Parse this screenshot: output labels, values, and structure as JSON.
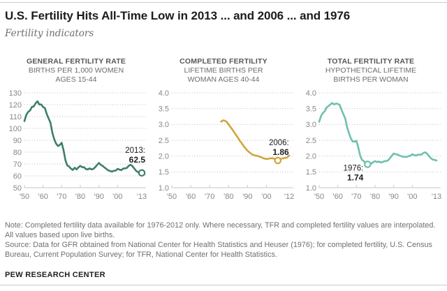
{
  "header": {
    "title": "U.S. Fertility Hits All-Time Low in 2013 ... and 2006 ... and 1976",
    "subtitle": "Fertility indicators"
  },
  "chart_data": [
    {
      "type": "line",
      "header": [
        "GENERAL FERTILITY RATE",
        "BIRTHS PER 1,000 WOMEN",
        "AGES 15-44"
      ],
      "color": "#3d7e6b",
      "x_start": 1950,
      "x_end": 2013,
      "data_x_start": 1950,
      "ylim": [
        50,
        130
      ],
      "yticks": [
        50,
        60,
        70,
        80,
        90,
        100,
        110,
        120,
        130
      ],
      "ytick_labels": [
        "50",
        "60",
        "70",
        "80",
        "90",
        "100",
        "110",
        "120",
        "130"
      ],
      "xticks": [
        1950,
        1960,
        1970,
        1980,
        1990,
        2000
      ],
      "xtick_labels": [
        "'50",
        "'60",
        "'70",
        "'80",
        "'90",
        "'00"
      ],
      "x_end_label": "'13",
      "grid": "dotted",
      "legend": "none",
      "values": [
        106.2,
        111.5,
        113.9,
        115.2,
        118.1,
        118.5,
        121.2,
        122.9,
        120.2,
        120.2,
        118.0,
        117.1,
        112.0,
        108.3,
        104.7,
        96.3,
        90.8,
        87.2,
        85.2,
        86.1,
        87.9,
        81.6,
        73.1,
        68.8,
        67.8,
        66.0,
        65.0,
        66.8,
        65.5,
        67.2,
        68.4,
        67.3,
        67.3,
        65.7,
        65.5,
        66.3,
        65.4,
        65.8,
        67.3,
        69.2,
        70.9,
        69.3,
        68.4,
        67.0,
        65.9,
        64.6,
        64.1,
        63.6,
        64.3,
        64.4,
        65.9,
        65.3,
        64.8,
        66.1,
        66.3,
        66.7,
        68.5,
        69.3,
        68.1,
        66.2,
        64.1,
        63.2,
        63.0,
        62.5
      ],
      "marker": {
        "year": 2013,
        "value": 62.5
      },
      "annotation": {
        "label": "2013:",
        "value": "62.5",
        "dx": 5,
        "dy1": -29,
        "dy2": -15,
        "anchor": "end"
      }
    },
    {
      "type": "line",
      "header": [
        "COMPLETED FERTILITY",
        "LIFETIME BIRTHS PER",
        "WOMAN AGES 40-44"
      ],
      "color": "#d0a63c",
      "x_start": 1950,
      "x_end": 2012,
      "data_x_start": 1976,
      "ylim": [
        1.0,
        4.0
      ],
      "yticks": [
        1.0,
        1.5,
        2.0,
        2.5,
        3.0,
        3.5,
        4.0
      ],
      "ytick_labels": [
        "1.0",
        "1.5",
        "2.0",
        "2.5",
        "3.0",
        "3.5",
        "4.0"
      ],
      "xticks": [
        1950,
        1960,
        1970,
        1980,
        1990,
        2000
      ],
      "xtick_labels": [
        "'50",
        "'60",
        "'70",
        "'80",
        "'90",
        "'00"
      ],
      "x_end_label": "'12",
      "grid": "dotted",
      "legend": "none",
      "values": [
        3.09,
        3.13,
        3.12,
        3.08,
        3.0,
        2.92,
        2.84,
        2.75,
        2.66,
        2.58,
        2.48,
        2.4,
        2.31,
        2.24,
        2.17,
        2.12,
        2.07,
        2.04,
        2.02,
        2.01,
        1.99,
        1.97,
        1.94,
        1.92,
        1.91,
        1.91,
        1.93,
        1.93,
        1.92,
        1.9,
        1.86,
        1.9,
        1.92,
        1.93,
        1.94,
        1.96,
        2.02
      ],
      "marker": {
        "year": 2006,
        "value": 1.86
      },
      "annotation": {
        "label": "2006:",
        "value": "1.86",
        "dx": 16,
        "dy1": -22,
        "dy2": -8,
        "anchor": "end"
      }
    },
    {
      "type": "line",
      "header": [
        "TOTAL FERTILITY RATE",
        "HYPOTHETICAL LIFETIME",
        "BIRTHS PER WOMAN"
      ],
      "color": "#6fc0ae",
      "x_start": 1950,
      "x_end": 2013,
      "data_x_start": 1950,
      "ylim": [
        1.0,
        4.0
      ],
      "yticks": [
        1.0,
        1.5,
        2.0,
        2.5,
        3.0,
        3.5,
        4.0
      ],
      "ytick_labels": [
        "1.0",
        "1.5",
        "2.0",
        "2.5",
        "3.0",
        "3.5",
        "4.0"
      ],
      "xticks": [
        1950,
        1960,
        1970,
        1980,
        1990,
        2000
      ],
      "xtick_labels": [
        "'50",
        "'60",
        "'70",
        "'80",
        "'90",
        "'00"
      ],
      "x_end_label": "'13",
      "grid": "dotted",
      "legend": "none",
      "values": [
        3.09,
        3.27,
        3.36,
        3.42,
        3.54,
        3.58,
        3.63,
        3.68,
        3.63,
        3.66,
        3.65,
        3.62,
        3.46,
        3.32,
        3.19,
        2.91,
        2.72,
        2.56,
        2.46,
        2.46,
        2.48,
        2.27,
        2.01,
        1.88,
        1.84,
        1.77,
        1.74,
        1.79,
        1.76,
        1.81,
        1.84,
        1.81,
        1.83,
        1.8,
        1.81,
        1.84,
        1.84,
        1.87,
        1.93,
        2.01,
        2.08,
        2.06,
        2.05,
        2.02,
        2.0,
        1.98,
        1.98,
        1.97,
        2.0,
        2.01,
        2.06,
        2.03,
        2.02,
        2.04,
        2.05,
        2.05,
        2.1,
        2.12,
        2.07,
        2.0,
        1.93,
        1.89,
        1.88,
        1.86
      ],
      "marker": {
        "year": 1976,
        "value": 1.74
      },
      "annotation": {
        "label": "1976:",
        "value": "1.74",
        "dx": -6,
        "dy1": 9,
        "dy2": 23,
        "anchor": "end"
      }
    }
  ],
  "footer": {
    "note": "Note: Completed fertility data available for 1976-2012 only. Where necessary, TFR and completed fertility values are interpolated. All values based upon live births.",
    "source": "Source: Data for GFR obtained from National Center for Health Statistics and Heuser (1976); for completed fertility, U.S. Census Bureau, Current Population Survey; for TFR, National Center for Health Statistics.",
    "brand": "PEW RESEARCH CENTER"
  }
}
